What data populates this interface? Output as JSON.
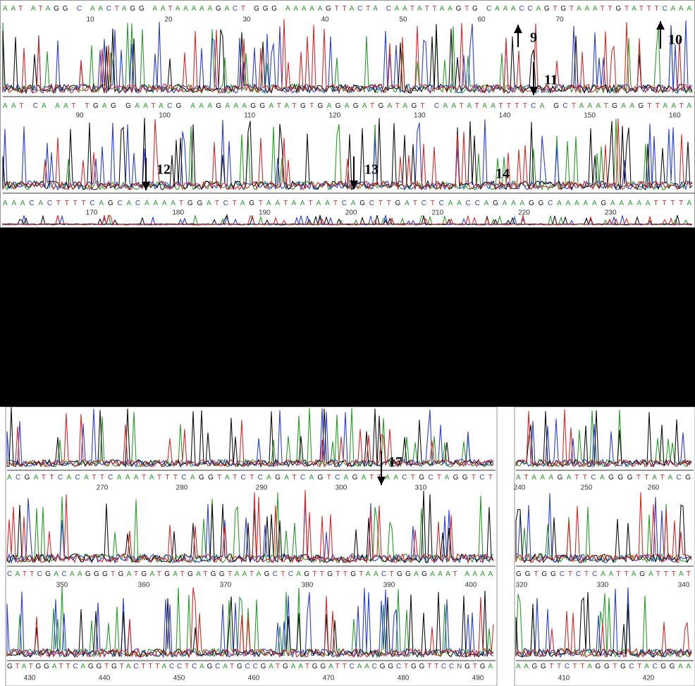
{
  "top_panel": {
    "rows": [
      {
        "sequence": "AAT ATAGG C AACTAGG AATAAAAAGACT GGG AAAAAGTTACTA CAATATTAAGTG CAAACCAGTGTAAATTGTATTTCAAA",
        "positions": [
          "10",
          "20",
          "30",
          "40",
          "50",
          "60",
          "70"
        ]
      },
      {
        "sequence": "AAT CA AAT TGAG GAATACG AAAGAAAGGATATGTGAGAGATGATAGT CAATATAATTTTCA GCTAAATGAAGTTAATA",
        "positions": [
          "90",
          "100",
          "110",
          "120",
          "130",
          "140",
          "150",
          "160"
        ]
      },
      {
        "sequence": "AAACACTTTTCAGCACAAAATGGATCTAGTAATAATAATCAGCTTGATCTCAACCAGAAAGGCAAAAAGAAAAATTTTA",
        "positions": [
          "170",
          "180",
          "190",
          "200",
          "210",
          "220",
          "230"
        ]
      }
    ]
  },
  "bottom_left_panel": {
    "rows": [
      {
        "sequence": "ACGATTCACATTCAAATATTTCAGGTATCTCAGATCAGTCAGATTAACTGCTAGGTCT",
        "positions": [
          "270",
          "280",
          "290",
          "300",
          "310"
        ]
      },
      {
        "sequence": "CATTCGACAAGGGTGATGATGATGATGGTAATAGCTCAGTTGTTGTAACTGGAGAAAT AAAA",
        "positions": [
          "350",
          "360",
          "370",
          "380",
          "390",
          "400"
        ]
      },
      {
        "sequence": "GTATGGATTCAGGTGTACTTTACCTCAGCATGCCGATGAATGGATTCAACGGCTGGTTCCNGTGA",
        "positions": [
          "430",
          "440",
          "450",
          "460",
          "470",
          "480",
          "490"
        ]
      }
    ]
  },
  "bottom_right_panel": {
    "rows": [
      {
        "sequence": "ATAAAGATTCAGGGTTATACG",
        "positions": [
          "240",
          "250",
          "260"
        ]
      },
      {
        "sequence": "GGTGGCTCTCAATTAGATTTAT",
        "positions": [
          "320",
          "330",
          "340"
        ]
      },
      {
        "sequence": "AAGGTTCTTAGGTGCTACGGAA",
        "positions": [
          "410",
          "420"
        ]
      }
    ]
  },
  "annotations": [
    "9",
    "10",
    "11",
    "12",
    "13",
    "14",
    "17"
  ]
}
